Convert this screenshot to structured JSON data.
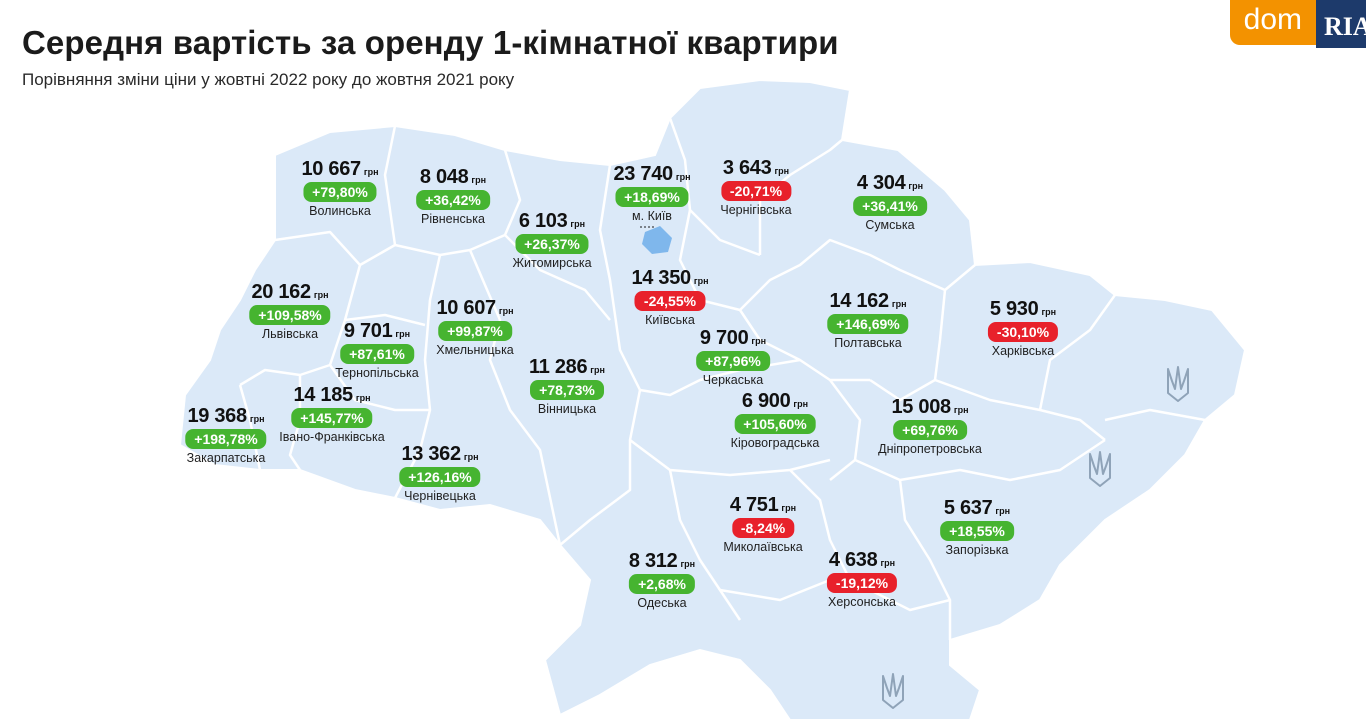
{
  "header": {
    "title": "Середня вартість за оренду 1-кімнатної квартири",
    "subtitle": "Порівняння зміни ціни у жовтні 2022 року до жовтня 2021 року"
  },
  "logo": {
    "dom": "dom",
    "ria": "RIA"
  },
  "currency": "грн",
  "colors": {
    "map": "#dbe9f8",
    "border": "#ffffff",
    "positive": "#46b430",
    "negative": "#e8212b",
    "kyiv": "#7fb7ec",
    "logo_orange": "#f39200",
    "logo_navy": "#1d3a6b"
  },
  "regions": [
    {
      "name": "Волинська",
      "price": "10 667",
      "change": "+79,80%",
      "sign": "pos"
    },
    {
      "name": "Рівненська",
      "price": "8 048",
      "change": "+36,42%",
      "sign": "pos"
    },
    {
      "name": "Житомирська",
      "price": "6 103",
      "change": "+26,37%",
      "sign": "pos"
    },
    {
      "name": "м. Київ",
      "price": "23 740",
      "change": "+18,69%",
      "sign": "pos"
    },
    {
      "name": "Чернігівська",
      "price": "3 643",
      "change": "-20,71%",
      "sign": "neg"
    },
    {
      "name": "Сумська",
      "price": "4 304",
      "change": "+36,41%",
      "sign": "pos"
    },
    {
      "name": "Київська",
      "price": "14 350",
      "change": "-24,55%",
      "sign": "neg"
    },
    {
      "name": "Львівська",
      "price": "20 162",
      "change": "+109,58%",
      "sign": "pos"
    },
    {
      "name": "Тернопільська",
      "price": "9 701",
      "change": "+87,61%",
      "sign": "pos"
    },
    {
      "name": "Хмельницька",
      "price": "10 607",
      "change": "+99,87%",
      "sign": "pos"
    },
    {
      "name": "Полтавська",
      "price": "14 162",
      "change": "+146,69%",
      "sign": "pos"
    },
    {
      "name": "Харківська",
      "price": "5 930",
      "change": "-30,10%",
      "sign": "neg"
    },
    {
      "name": "Черкаська",
      "price": "9 700",
      "change": "+87,96%",
      "sign": "pos"
    },
    {
      "name": "Вінницька",
      "price": "11 286",
      "change": "+78,73%",
      "sign": "pos"
    },
    {
      "name": "Івано-Франківська",
      "price": "14 185",
      "change": "+145,77%",
      "sign": "pos"
    },
    {
      "name": "Закарпатська",
      "price": "19 368",
      "change": "+198,78%",
      "sign": "pos"
    },
    {
      "name": "Чернівецька",
      "price": "13 362",
      "change": "+126,16%",
      "sign": "pos"
    },
    {
      "name": "Кіровоградська",
      "price": "6 900",
      "change": "+105,60%",
      "sign": "pos"
    },
    {
      "name": "Дніпропетровська",
      "price": "15 008",
      "change": "+69,76%",
      "sign": "pos"
    },
    {
      "name": "Миколаївська",
      "price": "4 751",
      "change": "-8,24%",
      "sign": "neg"
    },
    {
      "name": "Запорізька",
      "price": "5 637",
      "change": "+18,55%",
      "sign": "pos"
    },
    {
      "name": "Одеська",
      "price": "8 312",
      "change": "+2,68%",
      "sign": "pos"
    },
    {
      "name": "Херсонська",
      "price": "4 638",
      "change": "-19,12%",
      "sign": "neg"
    }
  ],
  "occupied_icons": [
    "trident-icon",
    "trident-icon",
    "trident-icon"
  ]
}
